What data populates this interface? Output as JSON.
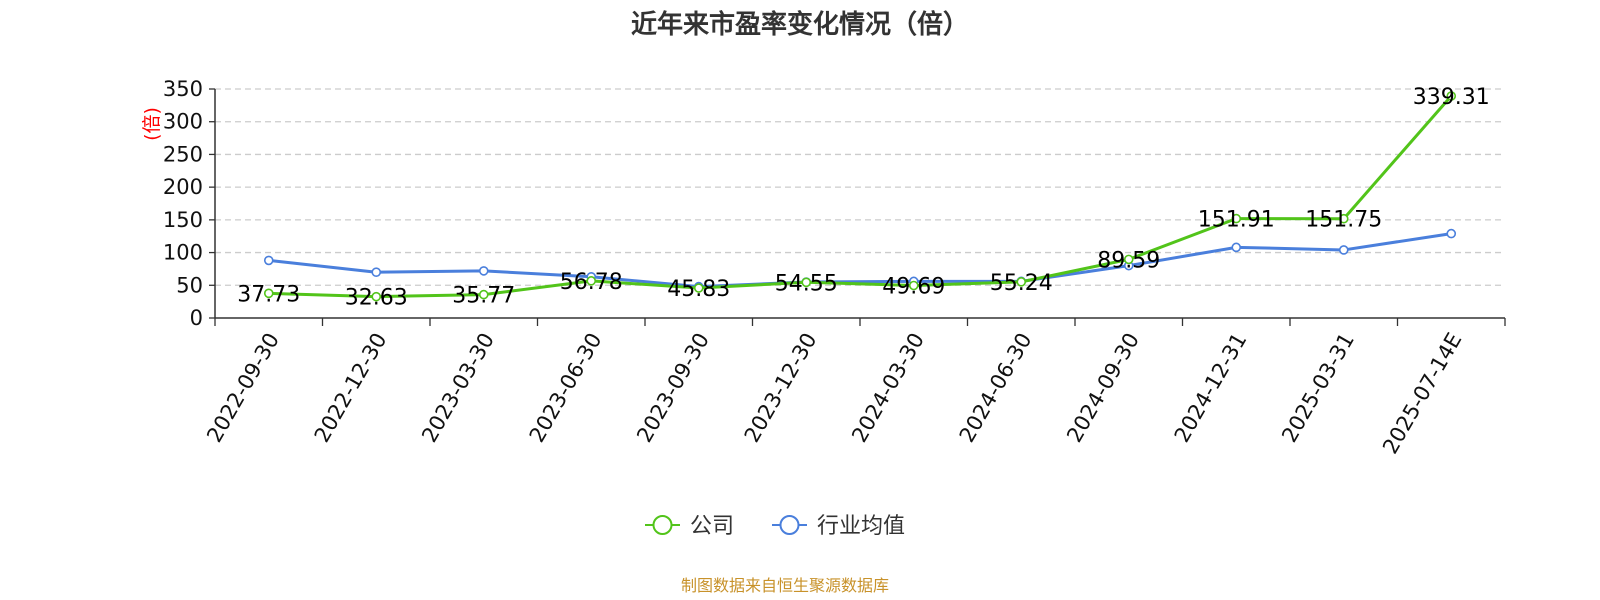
{
  "chart_data": {
    "type": "line",
    "title": "近年来市盈率变化情况（倍）",
    "ylabel": "(倍)",
    "xlabel": "",
    "ylim": [
      0,
      350
    ],
    "yticks": [
      0,
      50,
      100,
      150,
      200,
      250,
      300,
      350
    ],
    "grid": true,
    "legend_position": "bottom-center",
    "categories": [
      "2022-09-30",
      "2022-12-30",
      "2023-03-30",
      "2023-06-30",
      "2023-09-30",
      "2023-12-30",
      "2024-03-30",
      "2024-06-30",
      "2024-09-30",
      "2024-12-31",
      "2025-03-31",
      "2025-07-14E"
    ],
    "series": [
      {
        "name": "公司",
        "color": "#52c41a",
        "values": [
          37.73,
          32.63,
          35.77,
          56.78,
          45.83,
          54.55,
          49.69,
          55.24,
          89.59,
          151.91,
          151.75,
          339.31
        ],
        "labels": [
          "37.73",
          "32.63",
          "35.77",
          "56.78",
          "45.83",
          "54.55",
          "49.69",
          "55.24",
          "89.59",
          "151.91",
          "151.75",
          "339.31"
        ]
      },
      {
        "name": "行业均值",
        "color": "#4a7fdc",
        "values": [
          88,
          70,
          72,
          63,
          48,
          55,
          56,
          56,
          80,
          108,
          104,
          129
        ]
      }
    ],
    "source": "制图数据来自恒生聚源数据库",
    "source_color": "#c8922a",
    "unit_color": "#ff0000"
  }
}
